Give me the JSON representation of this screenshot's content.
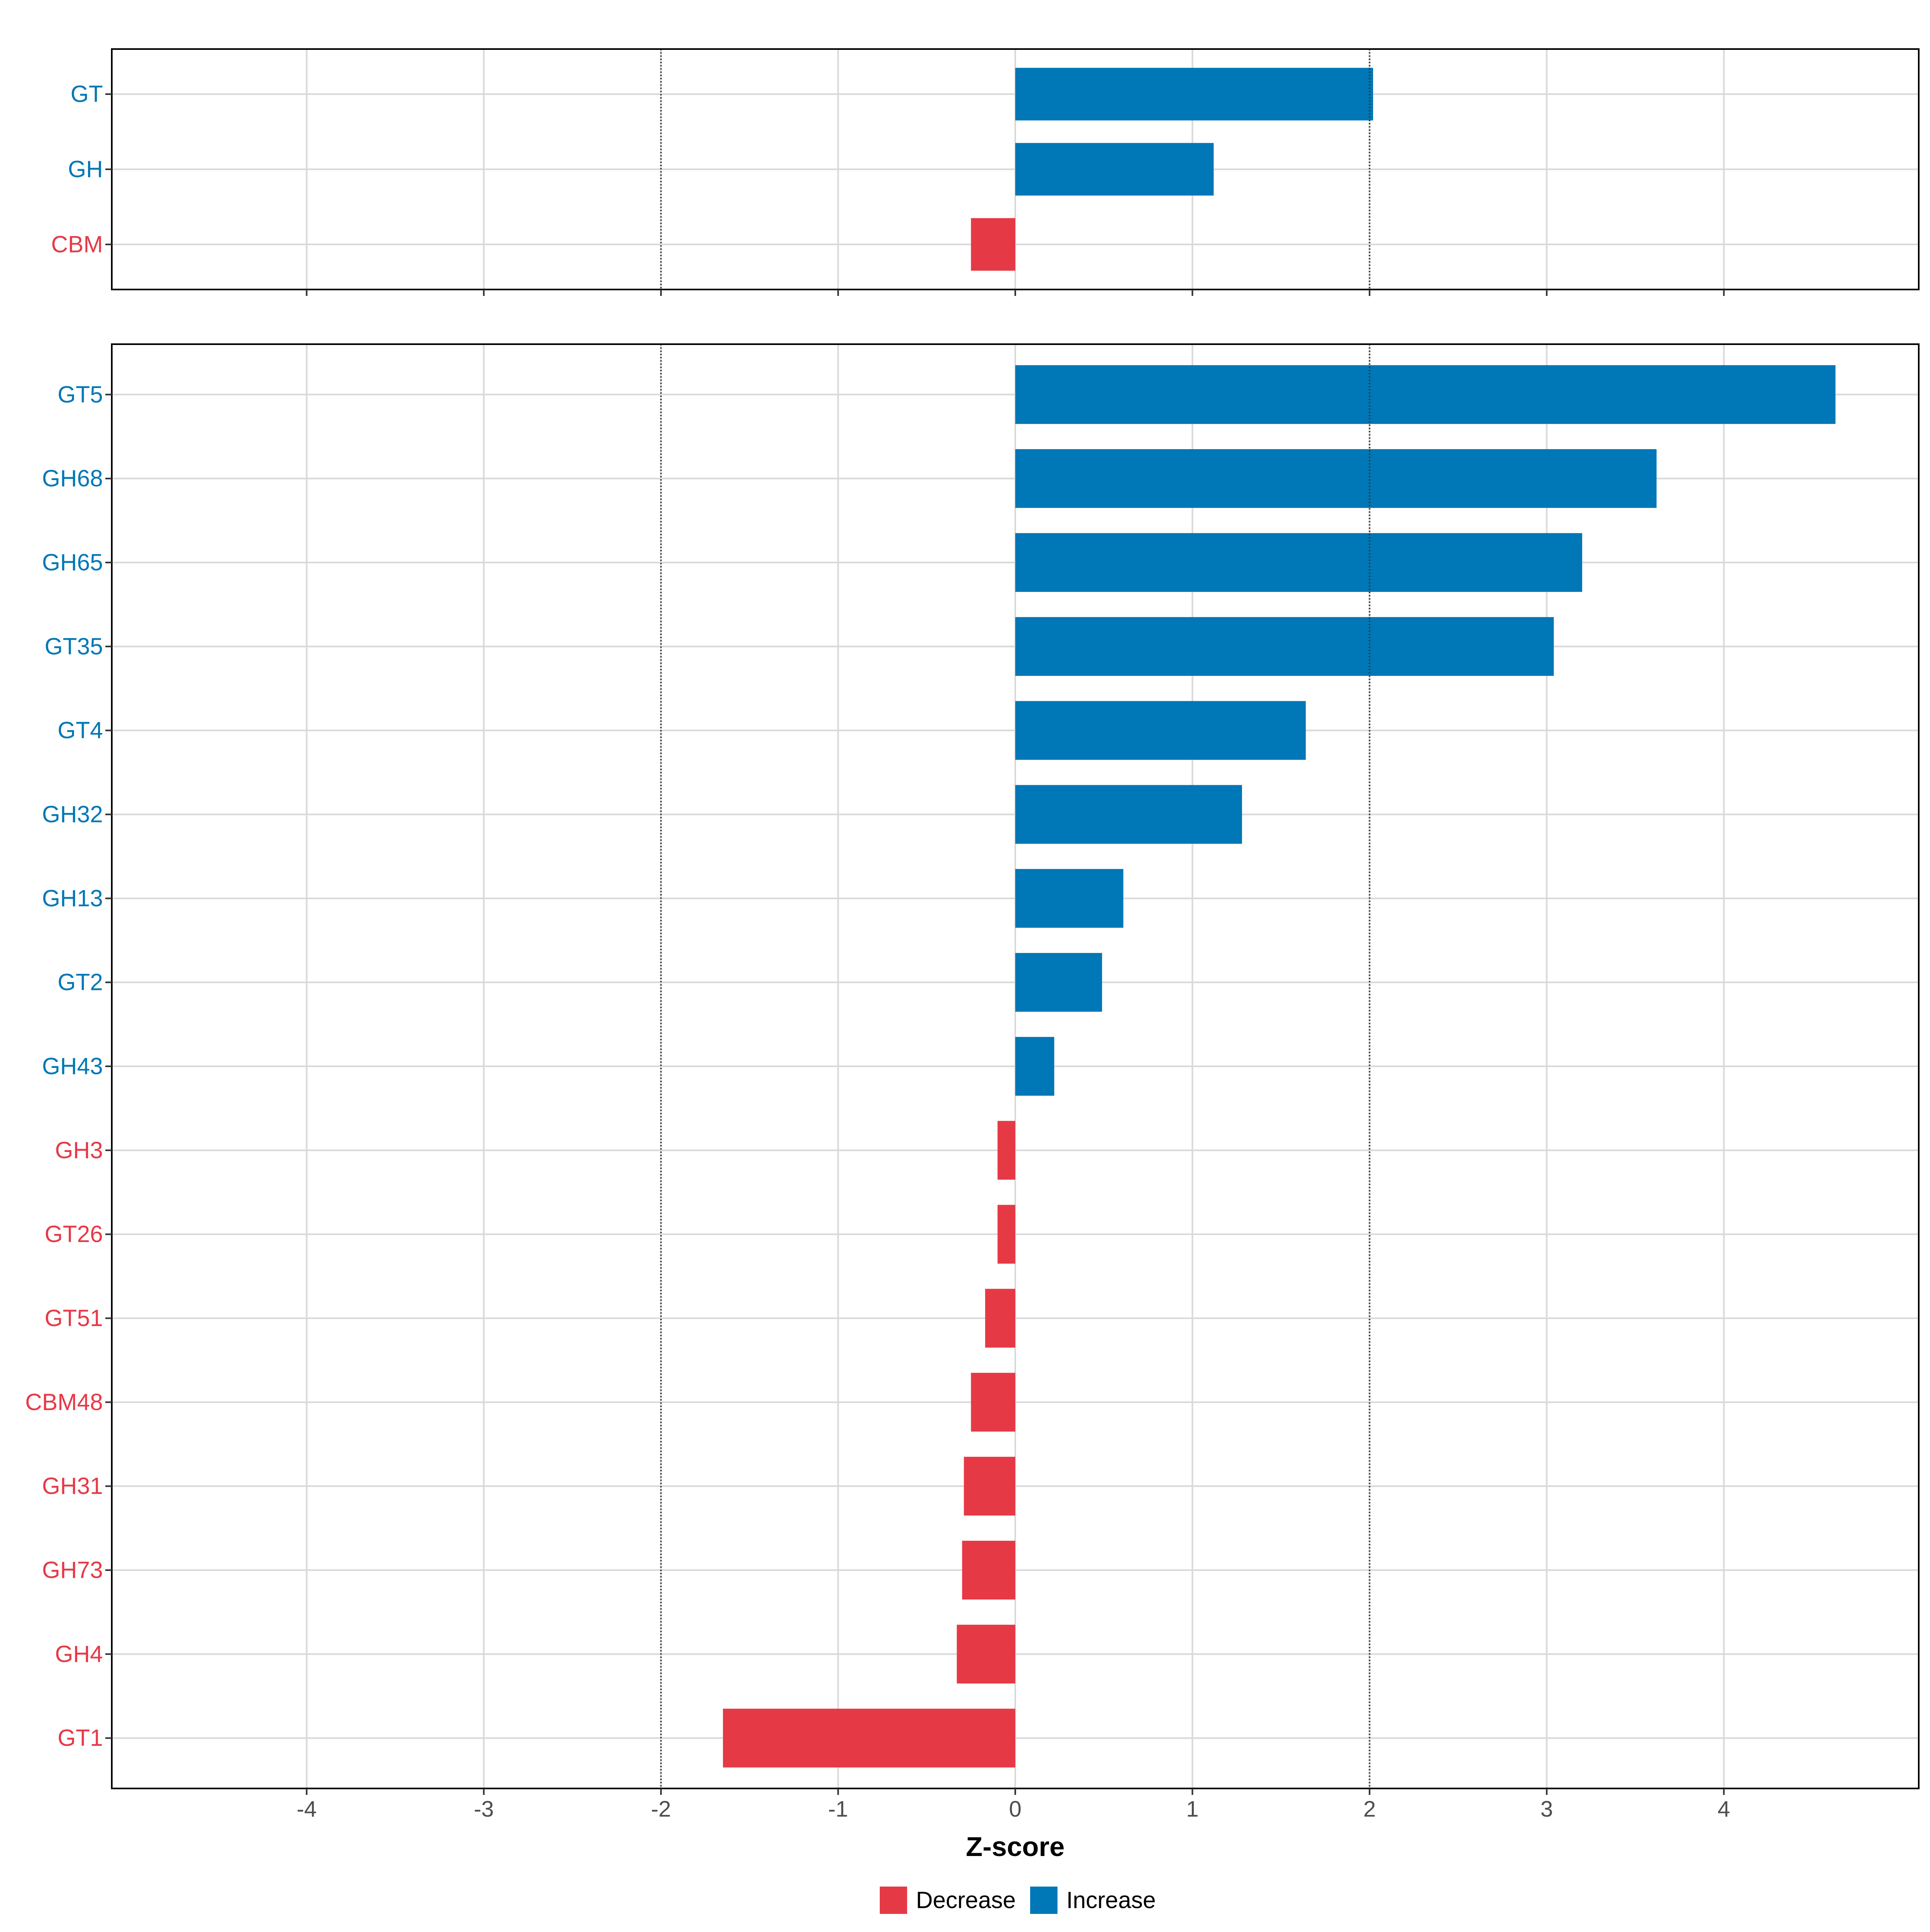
{
  "colors": {
    "decrease": "#E63946",
    "increase": "#0077B6",
    "grid": "#d9d9d9",
    "reference_line": "#333333",
    "panel_border": "#000000"
  },
  "chart_data": {
    "type": "bar",
    "orientation": "horizontal",
    "xlabel": "Z-score",
    "xlim": [
      -5.1,
      5.1
    ],
    "x_ticks": [
      -4,
      -3,
      -2,
      -1,
      0,
      1,
      2,
      3,
      4
    ],
    "x_tick_labels": [
      "-4",
      "-3",
      "-2",
      "-1",
      "0",
      "1",
      "2",
      "3",
      "4"
    ],
    "reference_lines": [
      -2,
      2
    ],
    "grid": true,
    "legend": {
      "placement": "bottom",
      "items": [
        {
          "key": "decrease",
          "label": "Decrease"
        },
        {
          "key": "increase",
          "label": "Increase"
        }
      ]
    },
    "panels": [
      {
        "categories": [
          "GT",
          "GH",
          "CBM"
        ],
        "values": [
          2.02,
          1.12,
          -0.25
        ],
        "direction": [
          "increase",
          "increase",
          "decrease"
        ]
      },
      {
        "categories": [
          "GT5",
          "GH68",
          "GH65",
          "GT35",
          "GT4",
          "GH32",
          "GH13",
          "GT2",
          "GH43",
          "GH3",
          "GT26",
          "GT51",
          "CBM48",
          "GH31",
          "GH73",
          "GH4",
          "GT1"
        ],
        "values": [
          4.63,
          3.62,
          3.2,
          3.04,
          1.64,
          1.28,
          0.61,
          0.49,
          0.22,
          -0.1,
          -0.1,
          -0.17,
          -0.25,
          -0.29,
          -0.3,
          -0.33,
          -1.65
        ],
        "direction": [
          "increase",
          "increase",
          "increase",
          "increase",
          "increase",
          "increase",
          "increase",
          "increase",
          "increase",
          "decrease",
          "decrease",
          "decrease",
          "decrease",
          "decrease",
          "decrease",
          "decrease",
          "decrease"
        ]
      }
    ]
  }
}
